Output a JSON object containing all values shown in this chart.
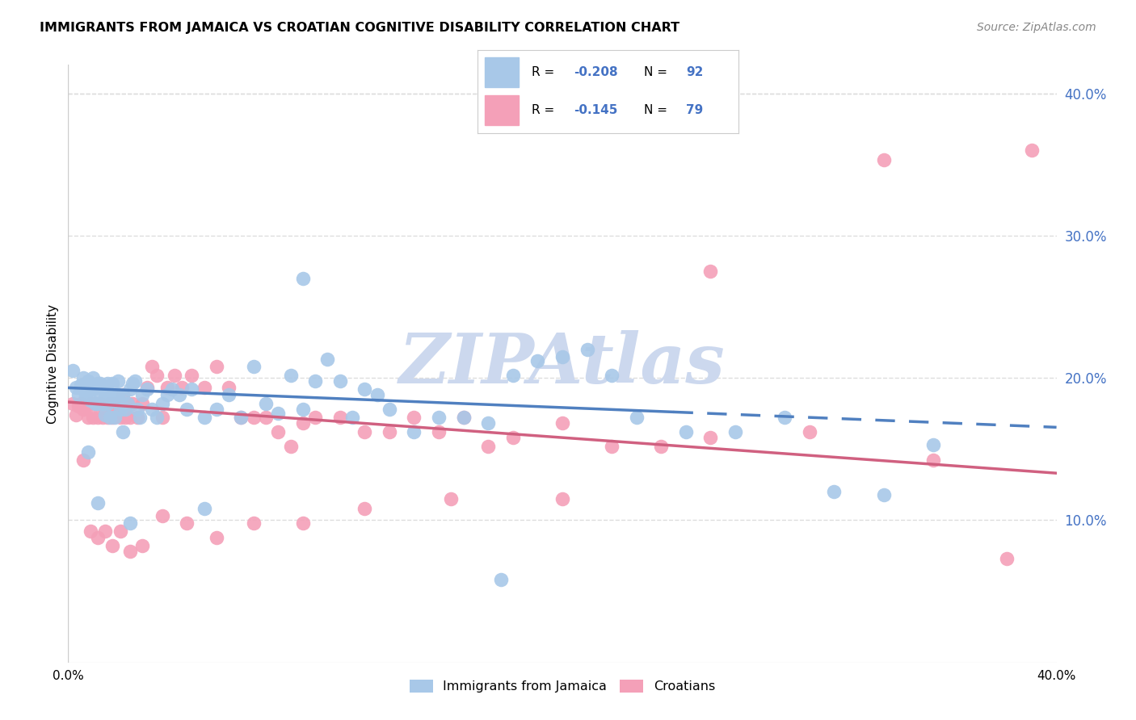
{
  "title": "IMMIGRANTS FROM JAMAICA VS CROATIAN COGNITIVE DISABILITY CORRELATION CHART",
  "source": "Source: ZipAtlas.com",
  "ylabel": "Cognitive Disability",
  "xlim": [
    0.0,
    0.4
  ],
  "ylim": [
    0.0,
    0.42
  ],
  "yticks": [
    0.1,
    0.2,
    0.3,
    0.4
  ],
  "ytick_labels": [
    "10.0%",
    "20.0%",
    "30.0%",
    "40.0%"
  ],
  "color_blue": "#a8c8e8",
  "color_pink": "#f4a0b8",
  "color_blue_line": "#5080c0",
  "color_pink_line": "#d06080",
  "color_text_blue": "#4472c4",
  "color_watermark": "#ccd8ee",
  "background_color": "#ffffff",
  "grid_color": "#dddddd",
  "trend_blue": [
    0.0,
    0.193,
    0.245,
    0.176
  ],
  "trend_pink": [
    0.0,
    0.183,
    0.4,
    0.133
  ],
  "trend_blue_dash_start": 0.245,
  "series1_x": [
    0.002,
    0.003,
    0.004,
    0.005,
    0.006,
    0.006,
    0.007,
    0.007,
    0.008,
    0.008,
    0.009,
    0.009,
    0.01,
    0.01,
    0.011,
    0.011,
    0.012,
    0.012,
    0.013,
    0.013,
    0.014,
    0.014,
    0.015,
    0.015,
    0.016,
    0.016,
    0.017,
    0.017,
    0.018,
    0.018,
    0.019,
    0.019,
    0.02,
    0.02,
    0.021,
    0.022,
    0.023,
    0.024,
    0.025,
    0.026,
    0.027,
    0.028,
    0.029,
    0.03,
    0.032,
    0.034,
    0.036,
    0.038,
    0.04,
    0.042,
    0.045,
    0.048,
    0.05,
    0.055,
    0.06,
    0.065,
    0.07,
    0.075,
    0.08,
    0.085,
    0.09,
    0.095,
    0.1,
    0.105,
    0.11,
    0.115,
    0.12,
    0.125,
    0.13,
    0.14,
    0.15,
    0.16,
    0.17,
    0.18,
    0.19,
    0.2,
    0.21,
    0.22,
    0.23,
    0.25,
    0.27,
    0.29,
    0.31,
    0.33,
    0.35,
    0.175,
    0.095,
    0.055,
    0.025,
    0.012,
    0.008,
    0.022
  ],
  "series1_y": [
    0.205,
    0.193,
    0.188,
    0.195,
    0.192,
    0.2,
    0.188,
    0.196,
    0.192,
    0.198,
    0.184,
    0.196,
    0.192,
    0.2,
    0.182,
    0.194,
    0.196,
    0.182,
    0.188,
    0.196,
    0.182,
    0.194,
    0.174,
    0.188,
    0.182,
    0.196,
    0.172,
    0.186,
    0.188,
    0.196,
    0.172,
    0.184,
    0.188,
    0.198,
    0.178,
    0.188,
    0.178,
    0.182,
    0.192,
    0.196,
    0.198,
    0.178,
    0.172,
    0.188,
    0.192,
    0.178,
    0.172,
    0.182,
    0.188,
    0.192,
    0.188,
    0.178,
    0.192,
    0.172,
    0.178,
    0.188,
    0.172,
    0.208,
    0.182,
    0.175,
    0.202,
    0.178,
    0.198,
    0.213,
    0.198,
    0.172,
    0.192,
    0.188,
    0.178,
    0.162,
    0.172,
    0.172,
    0.168,
    0.202,
    0.212,
    0.215,
    0.22,
    0.202,
    0.172,
    0.162,
    0.162,
    0.172,
    0.12,
    0.118,
    0.153,
    0.058,
    0.27,
    0.108,
    0.098,
    0.112,
    0.148,
    0.162
  ],
  "series2_x": [
    0.002,
    0.003,
    0.004,
    0.005,
    0.006,
    0.007,
    0.008,
    0.009,
    0.01,
    0.011,
    0.012,
    0.013,
    0.014,
    0.015,
    0.016,
    0.017,
    0.018,
    0.019,
    0.02,
    0.021,
    0.022,
    0.023,
    0.024,
    0.025,
    0.026,
    0.028,
    0.03,
    0.032,
    0.034,
    0.036,
    0.038,
    0.04,
    0.043,
    0.046,
    0.05,
    0.055,
    0.06,
    0.065,
    0.07,
    0.075,
    0.08,
    0.085,
    0.09,
    0.095,
    0.1,
    0.11,
    0.12,
    0.13,
    0.14,
    0.15,
    0.16,
    0.17,
    0.18,
    0.2,
    0.22,
    0.24,
    0.26,
    0.3,
    0.35,
    0.38,
    0.006,
    0.009,
    0.012,
    0.015,
    0.018,
    0.021,
    0.025,
    0.03,
    0.038,
    0.048,
    0.06,
    0.075,
    0.095,
    0.12,
    0.155,
    0.2,
    0.26,
    0.33,
    0.39
  ],
  "series2_y": [
    0.182,
    0.174,
    0.18,
    0.182,
    0.178,
    0.18,
    0.172,
    0.182,
    0.172,
    0.182,
    0.172,
    0.182,
    0.172,
    0.178,
    0.172,
    0.182,
    0.172,
    0.182,
    0.178,
    0.172,
    0.188,
    0.172,
    0.182,
    0.172,
    0.182,
    0.172,
    0.182,
    0.193,
    0.208,
    0.202,
    0.172,
    0.193,
    0.202,
    0.193,
    0.202,
    0.193,
    0.208,
    0.193,
    0.172,
    0.172,
    0.172,
    0.162,
    0.152,
    0.168,
    0.172,
    0.172,
    0.162,
    0.162,
    0.172,
    0.162,
    0.172,
    0.152,
    0.158,
    0.168,
    0.152,
    0.152,
    0.158,
    0.162,
    0.142,
    0.073,
    0.142,
    0.092,
    0.088,
    0.092,
    0.082,
    0.092,
    0.078,
    0.082,
    0.103,
    0.098,
    0.088,
    0.098,
    0.098,
    0.108,
    0.115,
    0.115,
    0.275,
    0.353,
    0.36
  ]
}
